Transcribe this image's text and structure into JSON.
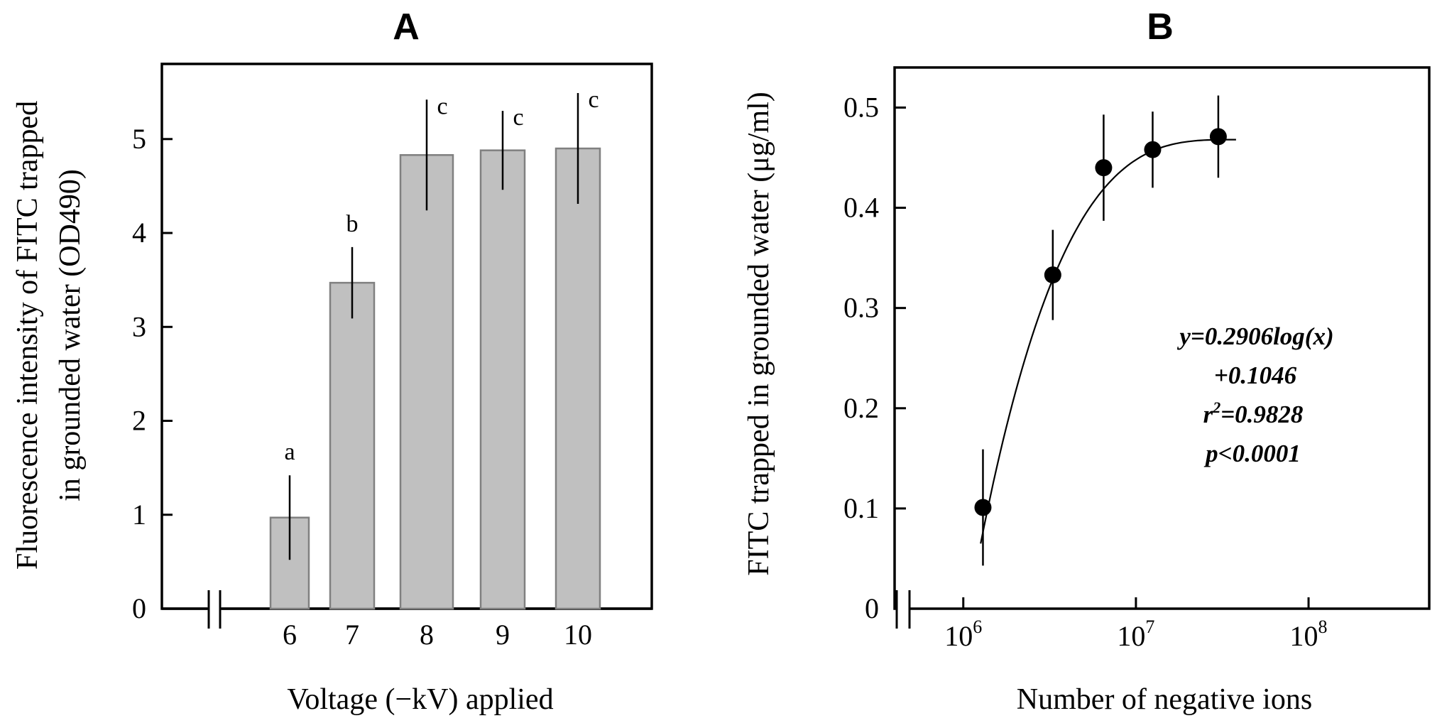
{
  "chart_data": [
    {
      "type": "bar",
      "panel_label": "A",
      "xlabel": "Voltage (−kV) applied",
      "ylabel_lines": [
        "Fluorescence intensity of FITC trapped",
        "in grounded  water (OD490)"
      ],
      "categories": [
        "6",
        "7",
        "8",
        "9",
        "10"
      ],
      "values": [
        0.97,
        3.47,
        4.83,
        4.88,
        4.9
      ],
      "error": [
        0.45,
        0.38,
        0.59,
        0.42,
        0.59
      ],
      "letters": [
        "a",
        "b",
        "c",
        "c",
        "c"
      ],
      "ylim": [
        0,
        5.8
      ],
      "yticks": [
        0,
        1,
        2,
        3,
        4,
        5
      ],
      "axis_break": true,
      "grid": false,
      "bar_color": "#c0c0c0",
      "bar_edge_color": "#808080"
    },
    {
      "type": "scatter",
      "panel_label": "B",
      "xlabel": "Number of negative ions",
      "ylabel": "FITC trapped  in grounded  water (μg/ml)",
      "xscale": "log",
      "xlim": [
        400000,
        500000000
      ],
      "xticks": [
        {
          "value": 1000000,
          "base": "10",
          "exp": "6"
        },
        {
          "value": 10000000,
          "base": "10",
          "exp": "7"
        },
        {
          "value": 100000000,
          "base": "10",
          "exp": "8"
        }
      ],
      "ylim": [
        0,
        0.54
      ],
      "yticks": [
        "0",
        "0.1",
        "0.2",
        "0.3",
        "0.4",
        "0.5"
      ],
      "x": [
        1300000,
        3300000,
        6500000,
        12500000,
        30000000
      ],
      "y": [
        0.101,
        0.333,
        0.44,
        0.458,
        0.471
      ],
      "error": [
        0.058,
        0.045,
        0.053,
        0.038,
        0.041
      ],
      "fit": {
        "type": "logarithmic",
        "x_start": 1260000,
        "x_end": 38000000,
        "y_floor": 0.065,
        "y_cap": 0.468
      },
      "equation": {
        "line1": "y=0.2906log(x)",
        "line2": "+0.1046",
        "r_prefix": "r",
        "r_sup": "2",
        "r_value": "=0.9828",
        "line4": "p<0.0001"
      },
      "axis_break": true,
      "grid": false,
      "marker_color": "#000000"
    }
  ]
}
